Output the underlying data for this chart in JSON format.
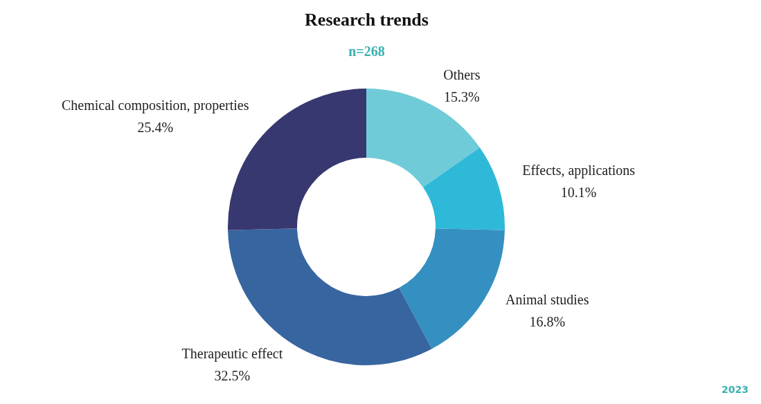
{
  "chart_data": {
    "type": "donut",
    "title": "Research trends",
    "subtitle": "n=268",
    "categories": [
      "Others",
      "Effects, applications",
      "Animal studies",
      "Therapeutic effect",
      "Chemical composition, properties"
    ],
    "values": [
      15.3,
      10.1,
      16.8,
      32.5,
      25.4
    ],
    "colors": [
      "#6fcbd8",
      "#2fb9d8",
      "#3490c0",
      "#3765a0",
      "#383870"
    ],
    "value_labels": [
      "15.3%",
      "10.1%",
      "16.8%",
      "32.5%",
      "25.4%"
    ],
    "legend": false,
    "annotations": [
      "2023"
    ]
  }
}
